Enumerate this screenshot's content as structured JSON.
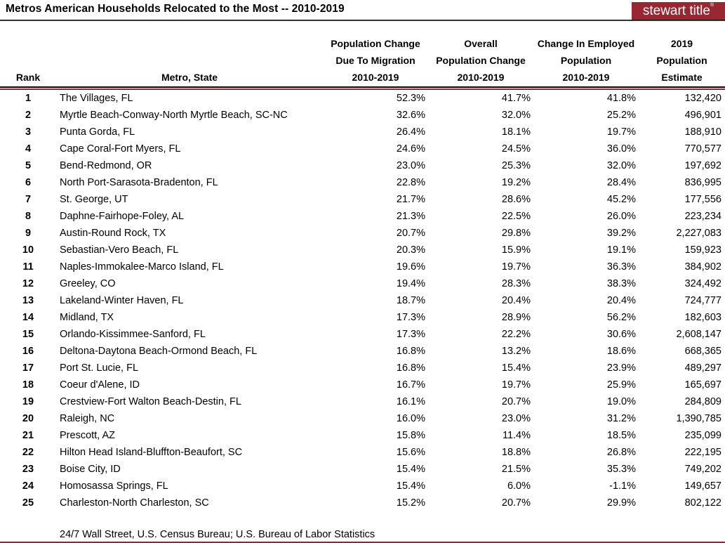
{
  "header": {
    "title": "Metros American Households Relocated to the Most -- 2010-2019",
    "logo_text": "stewart title",
    "logo_mark": "®",
    "logo_bg_color": "#992732"
  },
  "colors": {
    "accent_red": "#8C2830",
    "rule_black": "#000000"
  },
  "table": {
    "headers": [
      {
        "id": "rank",
        "lines": [
          "Rank"
        ]
      },
      {
        "id": "metro",
        "lines": [
          "Metro, State"
        ]
      },
      {
        "id": "migration",
        "lines": [
          "Population Change",
          "Due To Migration",
          "2010-2019"
        ]
      },
      {
        "id": "overall",
        "lines": [
          "Overall",
          "Population Change",
          "2010-2019"
        ]
      },
      {
        "id": "employed",
        "lines": [
          "Change In Employed",
          "Population",
          "2010-2019"
        ]
      },
      {
        "id": "population",
        "lines": [
          "2019",
          "Population",
          "Estimate"
        ]
      }
    ],
    "rows": [
      {
        "rank": "1",
        "metro": "The Villages, FL",
        "migration": "52.3%",
        "overall": "41.7%",
        "employed": "41.8%",
        "population": "132,420"
      },
      {
        "rank": "2",
        "metro": "Myrtle Beach-Conway-North Myrtle Beach, SC-NC",
        "migration": "32.6%",
        "overall": "32.0%",
        "employed": "25.2%",
        "population": "496,901"
      },
      {
        "rank": "3",
        "metro": "Punta Gorda, FL",
        "migration": "26.4%",
        "overall": "18.1%",
        "employed": "19.7%",
        "population": "188,910"
      },
      {
        "rank": "4",
        "metro": "Cape Coral-Fort Myers, FL",
        "migration": "24.6%",
        "overall": "24.5%",
        "employed": "36.0%",
        "population": "770,577"
      },
      {
        "rank": "5",
        "metro": "Bend-Redmond, OR",
        "migration": "23.0%",
        "overall": "25.3%",
        "employed": "32.0%",
        "population": "197,692"
      },
      {
        "rank": "6",
        "metro": "North Port-Sarasota-Bradenton, FL",
        "migration": "22.8%",
        "overall": "19.2%",
        "employed": "28.4%",
        "population": "836,995"
      },
      {
        "rank": "7",
        "metro": "St. George, UT",
        "migration": "21.7%",
        "overall": "28.6%",
        "employed": "45.2%",
        "population": "177,556"
      },
      {
        "rank": "8",
        "metro": "Daphne-Fairhope-Foley, AL",
        "migration": "21.3%",
        "overall": "22.5%",
        "employed": "26.0%",
        "population": "223,234"
      },
      {
        "rank": "9",
        "metro": "Austin-Round Rock, TX",
        "migration": "20.7%",
        "overall": "29.8%",
        "employed": "39.2%",
        "population": "2,227,083"
      },
      {
        "rank": "10",
        "metro": "Sebastian-Vero Beach, FL",
        "migration": "20.3%",
        "overall": "15.9%",
        "employed": "19.1%",
        "population": "159,923"
      },
      {
        "rank": "11",
        "metro": "Naples-Immokalee-Marco Island, FL",
        "migration": "19.6%",
        "overall": "19.7%",
        "employed": "36.3%",
        "population": "384,902"
      },
      {
        "rank": "12",
        "metro": "Greeley, CO",
        "migration": "19.4%",
        "overall": "28.3%",
        "employed": "38.3%",
        "population": "324,492"
      },
      {
        "rank": "13",
        "metro": "Lakeland-Winter Haven, FL",
        "migration": "18.7%",
        "overall": "20.4%",
        "employed": "20.4%",
        "population": "724,777"
      },
      {
        "rank": "14",
        "metro": "Midland, TX",
        "migration": "17.3%",
        "overall": "28.9%",
        "employed": "56.2%",
        "population": "182,603"
      },
      {
        "rank": "15",
        "metro": "Orlando-Kissimmee-Sanford, FL",
        "migration": "17.3%",
        "overall": "22.2%",
        "employed": "30.6%",
        "population": "2,608,147"
      },
      {
        "rank": "16",
        "metro": "Deltona-Daytona Beach-Ormond Beach, FL",
        "migration": "16.8%",
        "overall": "13.2%",
        "employed": "18.6%",
        "population": "668,365"
      },
      {
        "rank": "17",
        "metro": "Port St. Lucie, FL",
        "migration": "16.8%",
        "overall": "15.4%",
        "employed": "23.9%",
        "population": "489,297"
      },
      {
        "rank": "18",
        "metro": "Coeur d'Alene, ID",
        "migration": "16.7%",
        "overall": "19.7%",
        "employed": "25.9%",
        "population": "165,697"
      },
      {
        "rank": "19",
        "metro": "Crestview-Fort Walton Beach-Destin, FL",
        "migration": "16.1%",
        "overall": "20.7%",
        "employed": "19.0%",
        "population": "284,809"
      },
      {
        "rank": "20",
        "metro": "Raleigh, NC",
        "migration": "16.0%",
        "overall": "23.0%",
        "employed": "31.2%",
        "population": "1,390,785"
      },
      {
        "rank": "21",
        "metro": "Prescott, AZ",
        "migration": "15.8%",
        "overall": "11.4%",
        "employed": "18.5%",
        "population": "235,099"
      },
      {
        "rank": "22",
        "metro": "Hilton Head Island-Bluffton-Beaufort, SC",
        "migration": "15.6%",
        "overall": "18.8%",
        "employed": "26.8%",
        "population": "222,195"
      },
      {
        "rank": "23",
        "metro": "Boise City, ID",
        "migration": "15.4%",
        "overall": "21.5%",
        "employed": "35.3%",
        "population": "749,202"
      },
      {
        "rank": "24",
        "metro": "Homosassa Springs, FL",
        "migration": "15.4%",
        "overall": "6.0%",
        "employed": "-1.1%",
        "population": "149,657"
      },
      {
        "rank": "25",
        "metro": "Charleston-North Charleston, SC",
        "migration": "15.2%",
        "overall": "20.7%",
        "employed": "29.9%",
        "population": "802,122"
      }
    ]
  },
  "footer": {
    "source": "24/7 Wall Street, U.S. Census Bureau; U.S. Bureau of Labor Statistics"
  },
  "chart_data": {
    "type": "table",
    "title": "Metros American Households Relocated to the Most -- 2010-2019",
    "columns": [
      "Rank",
      "Metro, State",
      "Population Change Due To Migration 2010-2019 (%)",
      "Overall Population Change 2010-2019 (%)",
      "Change In Employed Population 2010-2019 (%)",
      "2019 Population Estimate"
    ],
    "rows": [
      [
        1,
        "The Villages, FL",
        52.3,
        41.7,
        41.8,
        132420
      ],
      [
        2,
        "Myrtle Beach-Conway-North Myrtle Beach, SC-NC",
        32.6,
        32.0,
        25.2,
        496901
      ],
      [
        3,
        "Punta Gorda, FL",
        26.4,
        18.1,
        19.7,
        188910
      ],
      [
        4,
        "Cape Coral-Fort Myers, FL",
        24.6,
        24.5,
        36.0,
        770577
      ],
      [
        5,
        "Bend-Redmond, OR",
        23.0,
        25.3,
        32.0,
        197692
      ],
      [
        6,
        "North Port-Sarasota-Bradenton, FL",
        22.8,
        19.2,
        28.4,
        836995
      ],
      [
        7,
        "St. George, UT",
        21.7,
        28.6,
        45.2,
        177556
      ],
      [
        8,
        "Daphne-Fairhope-Foley, AL",
        21.3,
        22.5,
        26.0,
        223234
      ],
      [
        9,
        "Austin-Round Rock, TX",
        20.7,
        29.8,
        39.2,
        2227083
      ],
      [
        10,
        "Sebastian-Vero Beach, FL",
        20.3,
        15.9,
        19.1,
        159923
      ],
      [
        11,
        "Naples-Immokalee-Marco Island, FL",
        19.6,
        19.7,
        36.3,
        384902
      ],
      [
        12,
        "Greeley, CO",
        19.4,
        28.3,
        38.3,
        324492
      ],
      [
        13,
        "Lakeland-Winter Haven, FL",
        18.7,
        20.4,
        20.4,
        724777
      ],
      [
        14,
        "Midland, TX",
        17.3,
        28.9,
        56.2,
        182603
      ],
      [
        15,
        "Orlando-Kissimmee-Sanford, FL",
        17.3,
        22.2,
        30.6,
        2608147
      ],
      [
        16,
        "Deltona-Daytona Beach-Ormond Beach, FL",
        16.8,
        13.2,
        18.6,
        668365
      ],
      [
        17,
        "Port St. Lucie, FL",
        16.8,
        15.4,
        23.9,
        489297
      ],
      [
        18,
        "Coeur d'Alene, ID",
        16.7,
        19.7,
        25.9,
        165697
      ],
      [
        19,
        "Crestview-Fort Walton Beach-Destin, FL",
        16.1,
        20.7,
        19.0,
        284809
      ],
      [
        20,
        "Raleigh, NC",
        16.0,
        23.0,
        31.2,
        1390785
      ],
      [
        21,
        "Prescott, AZ",
        15.8,
        11.4,
        18.5,
        235099
      ],
      [
        22,
        "Hilton Head Island-Bluffton-Beaufort, SC",
        15.6,
        18.8,
        26.8,
        222195
      ],
      [
        23,
        "Boise City, ID",
        15.4,
        21.5,
        35.3,
        749202
      ],
      [
        24,
        "Homosassa Springs, FL",
        15.4,
        6.0,
        -1.1,
        149657
      ],
      [
        25,
        "Charleston-North Charleston, SC",
        15.2,
        20.7,
        29.9,
        802122
      ]
    ],
    "source": "24/7 Wall Street, U.S. Census Bureau; U.S. Bureau of Labor Statistics"
  }
}
